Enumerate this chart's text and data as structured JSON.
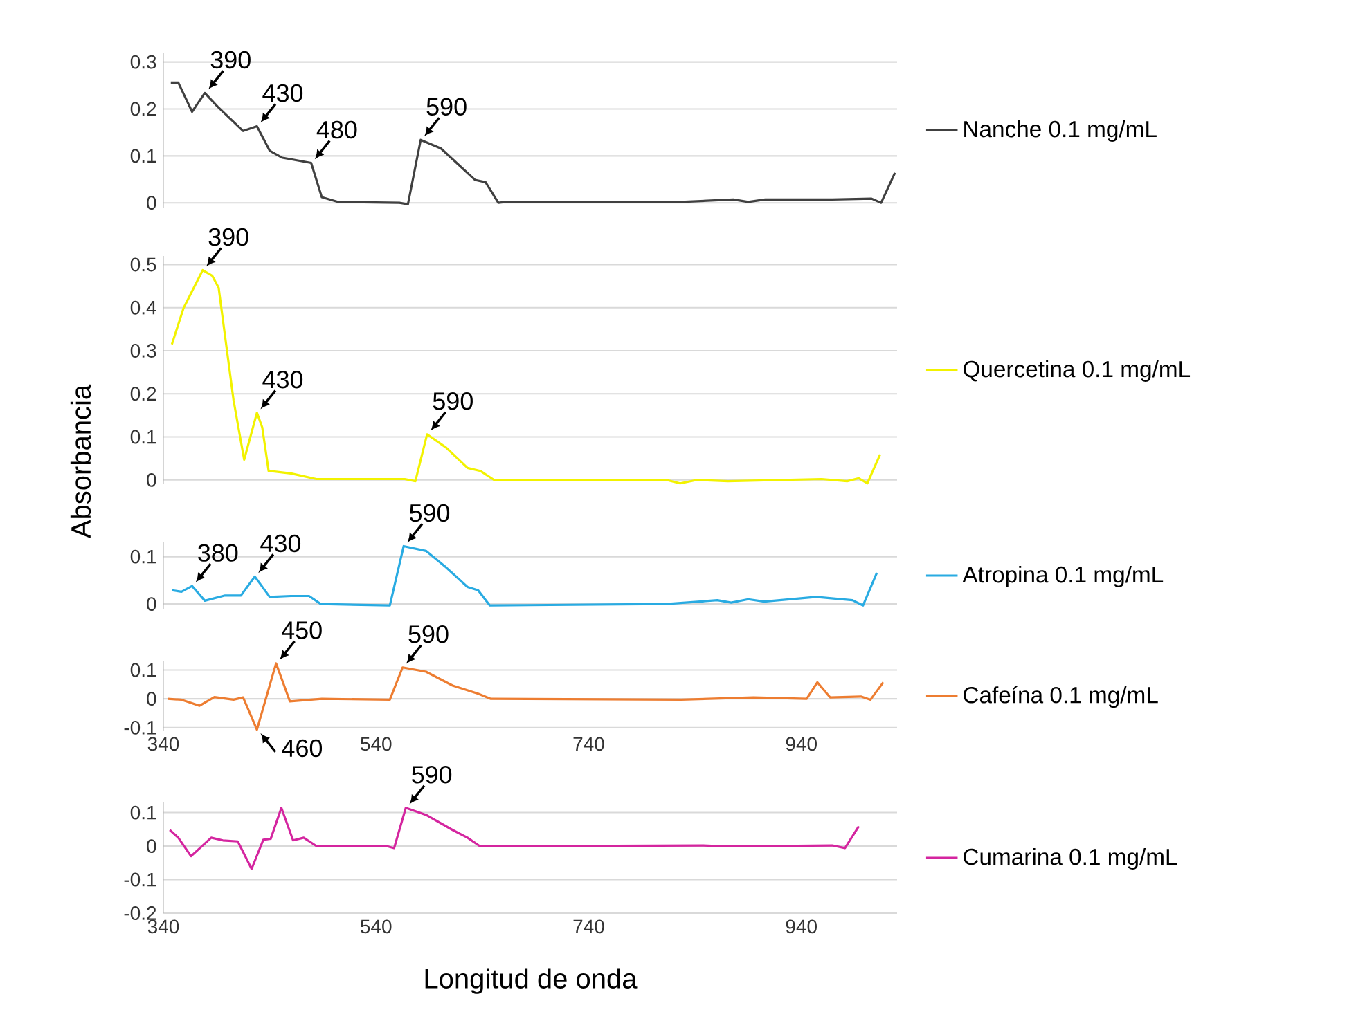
{
  "chart_data": [
    {
      "type": "line",
      "x": [
        347,
        354,
        367,
        379,
        391,
        415,
        428,
        440,
        452,
        462,
        479,
        489,
        504,
        562,
        570,
        582,
        601,
        633,
        643,
        655,
        662,
        827,
        876,
        890,
        906,
        949,
        969,
        1006,
        1015,
        1028
      ],
      "series": [
        {
          "name": "Nanche 0.1 mg/mL",
          "color": "#404040",
          "values": [
            0.256,
            0.256,
            0.194,
            0.234,
            0.205,
            0.153,
            0.163,
            0.111,
            0.096,
            0.092,
            0.085,
            0.012,
            0.002,
            0,
            -0.003,
            0.134,
            0.116,
            0.049,
            0.044,
            0,
            0.002,
            0.002,
            0.007,
            0.002,
            0.007,
            0.007,
            0.007,
            0.009,
            0,
            0.064
          ]
        }
      ],
      "xlim": [
        340,
        1030
      ],
      "xticks": [
        340,
        540,
        740,
        940
      ],
      "ylim": [
        -0.01,
        0.32
      ],
      "yticks": [
        0,
        0.1,
        0.2,
        0.3
      ],
      "grid": "y",
      "legend": "right",
      "tick_labels": "y",
      "annotations": [
        {
          "text": "390",
          "x": 379,
          "y": 0.234
        },
        {
          "text": "430",
          "x": 428,
          "y": 0.163
        },
        {
          "text": "480",
          "x": 479,
          "y": 0.085
        },
        {
          "text": "590",
          "x": 582,
          "y": 0.134
        }
      ]
    },
    {
      "type": "line",
      "x": [
        348,
        359,
        377,
        386,
        392,
        406,
        416,
        428,
        433,
        439,
        460,
        484,
        567,
        577,
        588,
        606,
        626,
        638,
        651,
        813,
        826,
        842,
        871,
        959,
        983,
        994,
        1002,
        1014
      ],
      "series": [
        {
          "name": "Quercetina 0.1 mg/mL",
          "color": "#f2f200",
          "values": [
            0.315,
            0.399,
            0.487,
            0.474,
            0.446,
            0.185,
            0.047,
            0.156,
            0.122,
            0.021,
            0.015,
            0.002,
            0.002,
            -0.003,
            0.106,
            0.075,
            0.028,
            0.021,
            0,
            0,
            -0.008,
            0,
            -0.003,
            0.002,
            -0.003,
            0.004,
            -0.008,
            0.059
          ]
        }
      ],
      "xlim": [
        340,
        1030
      ],
      "xticks": [
        340,
        540,
        740,
        940
      ],
      "ylim": [
        -0.01,
        0.52
      ],
      "yticks": [
        0,
        0.1,
        0.2,
        0.3,
        0.4,
        0.5
      ],
      "grid": "y",
      "legend": "right",
      "tick_labels": "y",
      "ylabel": "Absorbancia",
      "annotations": [
        {
          "text": "390",
          "x": 377,
          "y": 0.487
        },
        {
          "text": "430",
          "x": 428,
          "y": 0.156
        },
        {
          "text": "590",
          "x": 588,
          "y": 0.106
        }
      ]
    },
    {
      "type": "line",
      "x": [
        348,
        357,
        367,
        379,
        398,
        413,
        426,
        440,
        460,
        477,
        488,
        553,
        566,
        587,
        606,
        626,
        636,
        647,
        813,
        861,
        874,
        890,
        905,
        954,
        988,
        998,
        1011
      ],
      "series": [
        {
          "name": "Atropina  0.1 mg/mL",
          "color": "#29abe2",
          "values": [
            0.029,
            0.026,
            0.038,
            0.007,
            0.018,
            0.018,
            0.058,
            0.015,
            0.017,
            0.017,
            0,
            -0.003,
            0.122,
            0.112,
            0.077,
            0.036,
            0.029,
            -0.003,
            0,
            0.008,
            0.003,
            0.01,
            0.005,
            0.015,
            0.008,
            -0.003,
            0.066
          ]
        }
      ],
      "xlim": [
        340,
        1030
      ],
      "xticks": [
        340,
        540,
        740,
        940
      ],
      "ylim": [
        -0.01,
        0.13
      ],
      "yticks": [
        0,
        0.1
      ],
      "grid": "y",
      "legend": "right",
      "tick_labels": "y",
      "annotations": [
        {
          "text": "380",
          "x": 367,
          "y": 0.038
        },
        {
          "text": "430",
          "x": 426,
          "y": 0.058
        },
        {
          "text": "590",
          "x": 566,
          "y": 0.122
        }
      ]
    },
    {
      "type": "line",
      "x": [
        344,
        357,
        374,
        388,
        406,
        415,
        428,
        446,
        459,
        489,
        553,
        565,
        587,
        612,
        636,
        648,
        827,
        895,
        945,
        955,
        967,
        996,
        1005,
        1017
      ],
      "series": [
        {
          "name": "Cafeína  0.1 mg/mL",
          "color": "#ed7d31",
          "values": [
            0,
            -0.003,
            -0.024,
            0.006,
            -0.003,
            0.005,
            -0.107,
            0.123,
            -0.009,
            0,
            -0.003,
            0.109,
            0.094,
            0.046,
            0.018,
            0,
            -0.003,
            0.005,
            0,
            0.057,
            0.005,
            0.008,
            -0.003,
            0.057
          ]
        }
      ],
      "xlim": [
        340,
        1030
      ],
      "xticks": [
        340,
        540,
        740,
        940
      ],
      "ylim": [
        -0.11,
        0.13
      ],
      "yticks": [
        -0.1,
        0,
        0.1
      ],
      "grid": "y",
      "legend": "right",
      "annotations": [
        {
          "text": "590",
          "x": 565,
          "y": 0.109
        },
        {
          "text": "450",
          "x": 446,
          "y": 0.123
        },
        {
          "text": "460",
          "x": 428,
          "y": -0.107
        }
      ]
    },
    {
      "type": "line",
      "x": [
        346,
        354,
        366,
        385,
        396,
        410,
        423,
        434,
        441,
        451,
        462,
        472,
        484,
        550,
        557,
        568,
        587,
        612,
        626,
        638,
        847,
        871,
        969,
        981,
        994
      ],
      "series": [
        {
          "name": "Cumarina  0.1 mg/mL",
          "color": "#d4259f",
          "values": [
            0.048,
            0.025,
            -0.03,
            0.025,
            0.017,
            0.014,
            -0.068,
            0.019,
            0.022,
            0.114,
            0.017,
            0.025,
            0,
            0,
            -0.006,
            0.114,
            0.093,
            0.048,
            0.025,
            -0.001,
            0.002,
            -0.001,
            0.002,
            -0.006,
            0.059
          ]
        }
      ],
      "xlim": [
        340,
        1030
      ],
      "xticks": [
        340,
        540,
        740,
        940
      ],
      "ylim": [
        -0.2,
        0.13
      ],
      "yticks": [
        -0.2,
        -0.1,
        0,
        0.1
      ],
      "grid": "y",
      "legend": "right",
      "xlabel": "Longitud de onda",
      "annotations": [
        {
          "text": "590",
          "x": 568,
          "y": 0.114
        }
      ]
    }
  ]
}
